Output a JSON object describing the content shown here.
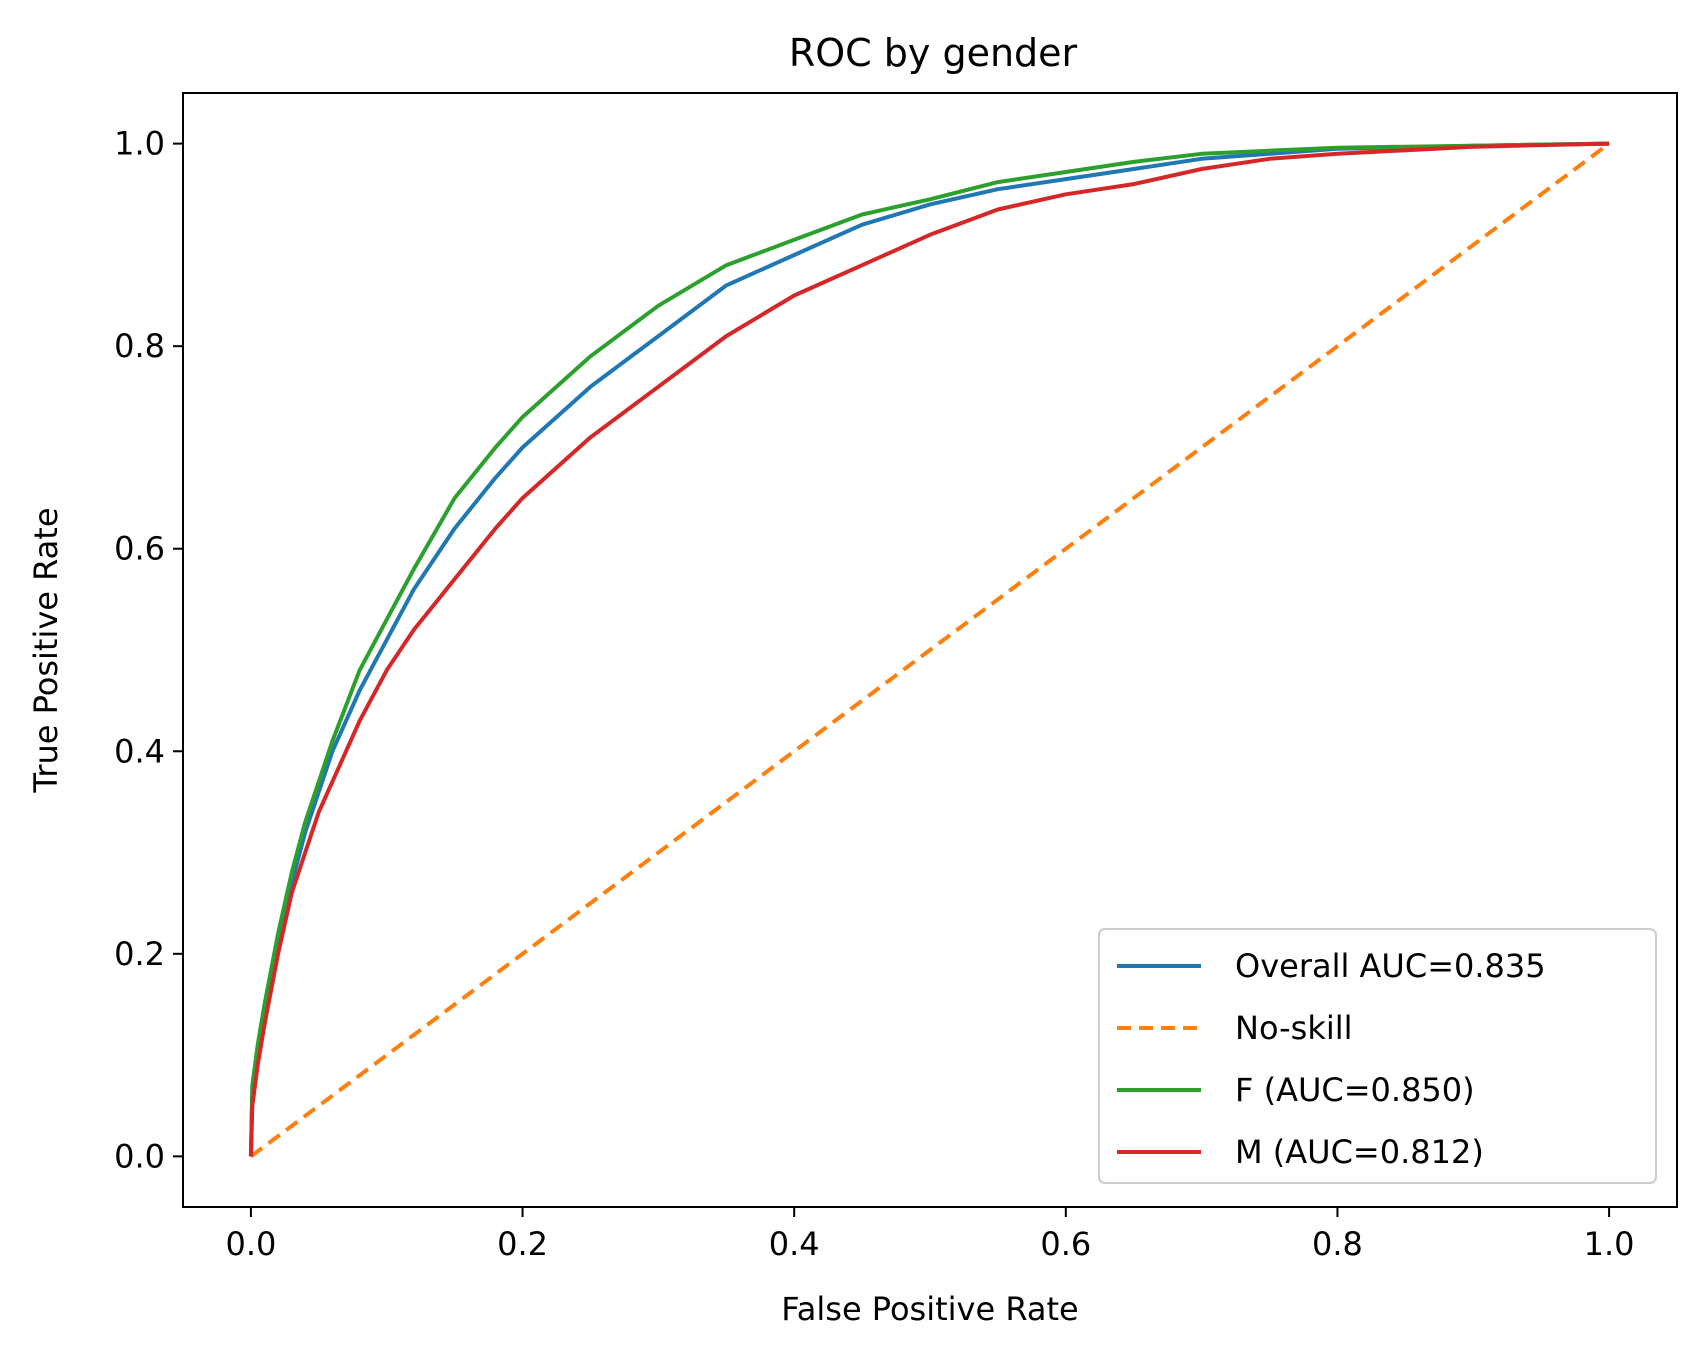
{
  "chart_data": {
    "type": "line",
    "title": "ROC by gender",
    "xlabel": "False Positive Rate",
    "ylabel": "True Positive Rate",
    "xlim": [
      -0.05,
      1.05
    ],
    "ylim": [
      -0.05,
      1.05
    ],
    "xticks": [
      "0.0",
      "0.2",
      "0.4",
      "0.6",
      "0.8",
      "1.0"
    ],
    "yticks": [
      "0.0",
      "0.2",
      "0.4",
      "0.6",
      "0.8",
      "1.0"
    ],
    "grid": false,
    "legend_position": "lower-right",
    "series": [
      {
        "name": "Overall AUC=0.835",
        "color": "#1f77b4",
        "style": "solid",
        "x": [
          0,
          0.001,
          0.005,
          0.01,
          0.02,
          0.03,
          0.04,
          0.05,
          0.06,
          0.08,
          0.1,
          0.12,
          0.15,
          0.18,
          0.2,
          0.25,
          0.3,
          0.35,
          0.4,
          0.45,
          0.5,
          0.55,
          0.6,
          0.65,
          0.7,
          0.75,
          0.8,
          0.9,
          1.0
        ],
        "y": [
          0,
          0.06,
          0.1,
          0.14,
          0.21,
          0.27,
          0.32,
          0.36,
          0.4,
          0.46,
          0.51,
          0.56,
          0.62,
          0.67,
          0.7,
          0.76,
          0.81,
          0.86,
          0.89,
          0.92,
          0.94,
          0.955,
          0.965,
          0.975,
          0.985,
          0.99,
          0.995,
          0.998,
          1.0
        ]
      },
      {
        "name": "No-skill",
        "color": "#ff7f0e",
        "style": "dashed",
        "x": [
          0,
          1
        ],
        "y": [
          0,
          1
        ]
      },
      {
        "name": "F (AUC=0.850)",
        "color": "#2ca02c",
        "style": "solid",
        "x": [
          0,
          0.001,
          0.005,
          0.01,
          0.02,
          0.03,
          0.04,
          0.05,
          0.06,
          0.08,
          0.1,
          0.12,
          0.15,
          0.18,
          0.2,
          0.25,
          0.3,
          0.35,
          0.4,
          0.45,
          0.5,
          0.55,
          0.6,
          0.65,
          0.7,
          0.75,
          0.8,
          0.9,
          1.0
        ],
        "y": [
          0,
          0.07,
          0.11,
          0.15,
          0.22,
          0.28,
          0.33,
          0.37,
          0.41,
          0.48,
          0.53,
          0.58,
          0.65,
          0.7,
          0.73,
          0.79,
          0.84,
          0.88,
          0.905,
          0.93,
          0.945,
          0.962,
          0.972,
          0.982,
          0.99,
          0.993,
          0.996,
          0.998,
          1.0
        ]
      },
      {
        "name": "M (AUC=0.812)",
        "color": "#d62728",
        "style": "solid",
        "x": [
          0,
          0.001,
          0.005,
          0.01,
          0.02,
          0.03,
          0.04,
          0.05,
          0.06,
          0.08,
          0.1,
          0.12,
          0.15,
          0.18,
          0.2,
          0.25,
          0.3,
          0.35,
          0.4,
          0.45,
          0.5,
          0.55,
          0.6,
          0.65,
          0.7,
          0.75,
          0.8,
          0.9,
          1.0
        ],
        "y": [
          0,
          0.05,
          0.09,
          0.13,
          0.2,
          0.26,
          0.3,
          0.34,
          0.37,
          0.43,
          0.48,
          0.52,
          0.57,
          0.62,
          0.65,
          0.71,
          0.76,
          0.81,
          0.85,
          0.88,
          0.91,
          0.935,
          0.95,
          0.96,
          0.975,
          0.985,
          0.99,
          0.997,
          1.0
        ]
      }
    ]
  }
}
